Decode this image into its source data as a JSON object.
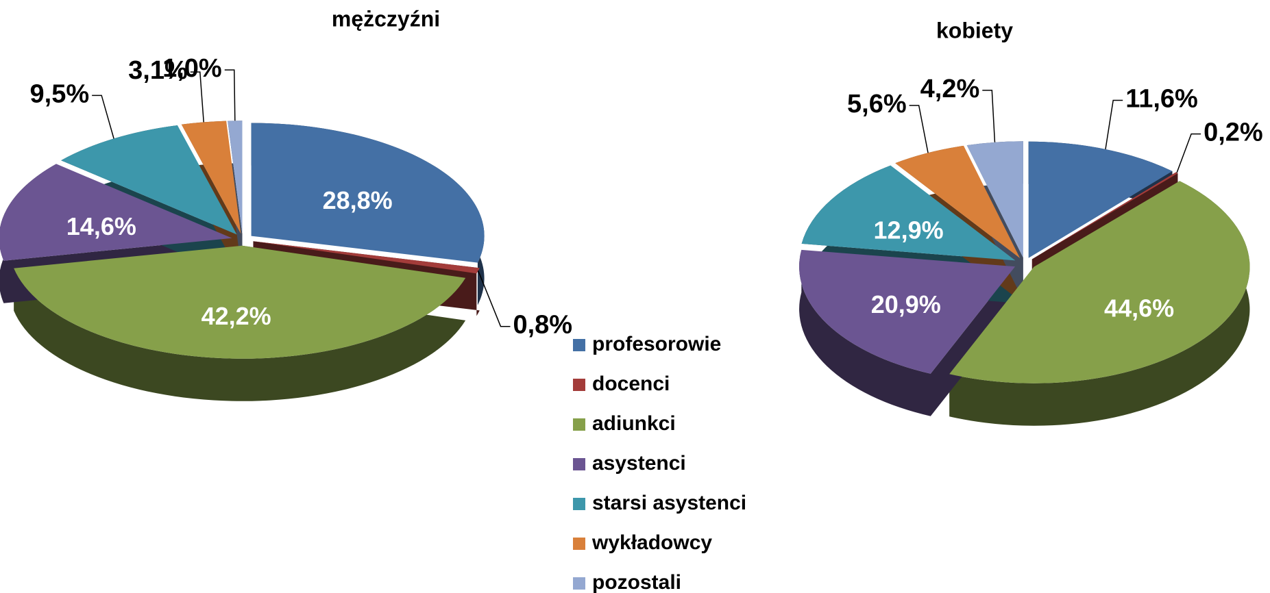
{
  "chart_data": [
    {
      "type": "pie",
      "title": "mężczyźni",
      "categories": [
        "profesorowie",
        "docenci",
        "adiunkci",
        "asystenci",
        "starsi asystenci",
        "wykładowcy",
        "pozostali"
      ],
      "values": [
        28.8,
        0.8,
        42.2,
        14.6,
        9.5,
        3.1,
        1.0
      ],
      "value_labels": [
        "28,8%",
        "0,8%",
        "42,2%",
        "14,6%",
        "9,5%",
        "3,1%",
        "1,0%"
      ],
      "colors": [
        "#4470a5",
        "#a33c3a",
        "#86a04a",
        "#6b5592",
        "#3d97ab",
        "#d9803a",
        "#94a8d1"
      ],
      "legend": true
    },
    {
      "type": "pie",
      "title": "kobiety",
      "categories": [
        "profesorowie",
        "docenci",
        "adiunkci",
        "asystenci",
        "starsi asystenci",
        "wykładowcy",
        "pozostali"
      ],
      "values": [
        11.6,
        0.2,
        44.6,
        20.9,
        12.9,
        5.6,
        4.2
      ],
      "value_labels": [
        "11,6%",
        "0,2%",
        "44,6%",
        "20,9%",
        "12,9%",
        "5,6%",
        "4,2%"
      ],
      "colors": [
        "#4470a5",
        "#a33c3a",
        "#86a04a",
        "#6b5592",
        "#3d97ab",
        "#d9803a",
        "#94a8d1"
      ],
      "legend": false
    }
  ]
}
